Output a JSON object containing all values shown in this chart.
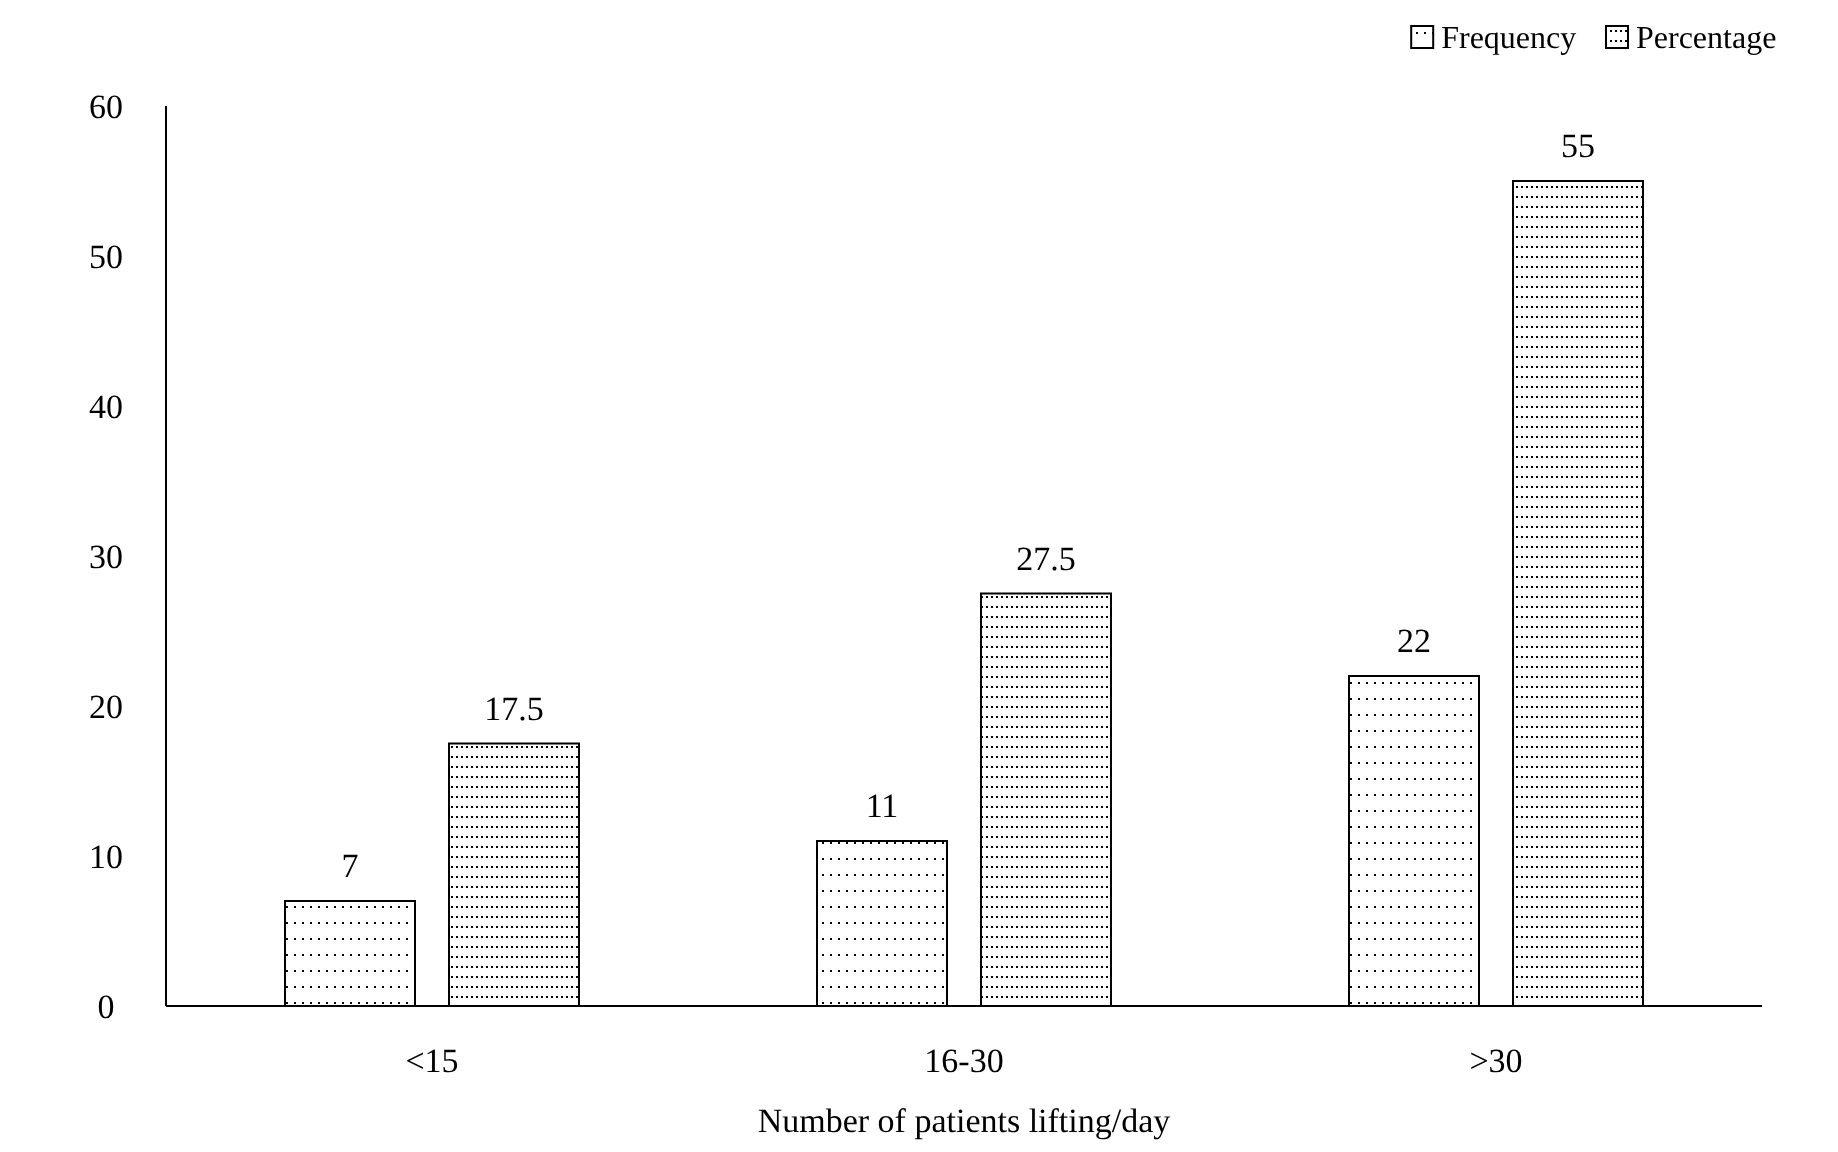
{
  "chart_data": {
    "type": "bar",
    "xlabel": "Number of patients lifting/day",
    "categories": [
      "<15",
      "16-30",
      ">30"
    ],
    "series": [
      {
        "name": "Frequency",
        "color": "#000000",
        "values": [
          7,
          11,
          22
        ]
      },
      {
        "name": "Percentage",
        "color": "#000000",
        "values": [
          17.5,
          27.5,
          55
        ]
      }
    ],
    "ylim": [
      0,
      60
    ],
    "yticks": [
      0,
      10,
      20,
      30,
      40,
      50,
      60
    ],
    "grid": false,
    "legend": "top right",
    "data_labels": true
  }
}
